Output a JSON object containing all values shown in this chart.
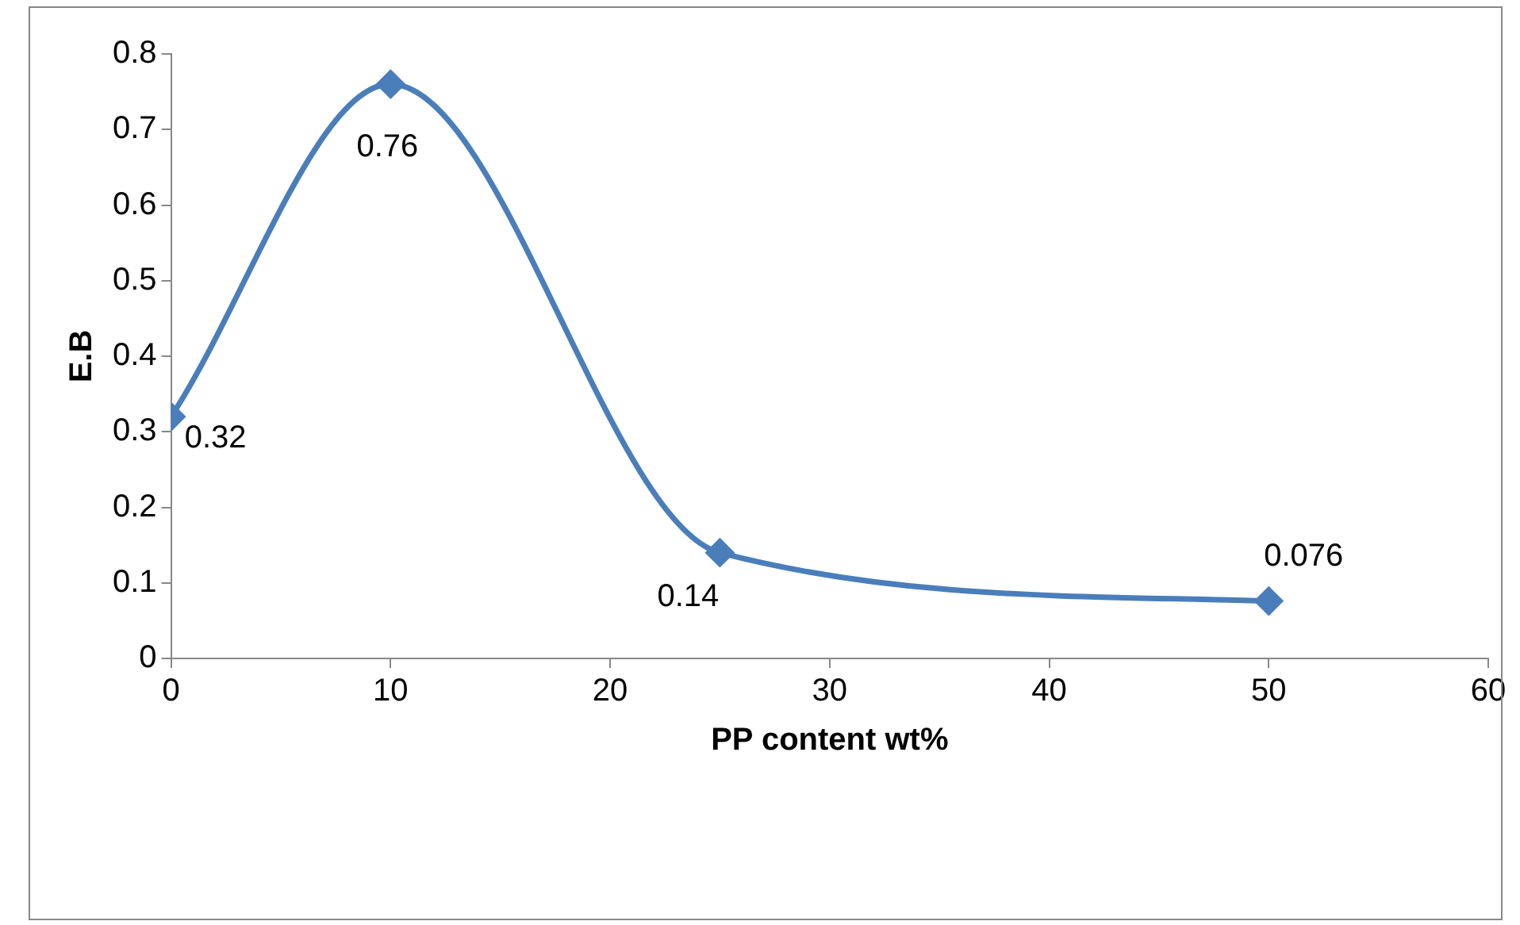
{
  "chart_data": {
    "type": "line",
    "xlabel": "PP content wt%",
    "ylabel": "E.B",
    "x": [
      0,
      10,
      25,
      50
    ],
    "series": [
      {
        "color": "#4a7ebb",
        "values": [
          0.32,
          0.76,
          0.14,
          0.076
        ]
      }
    ],
    "xlim": [
      0,
      60
    ],
    "xticks": [
      0,
      10,
      20,
      30,
      40,
      50,
      60
    ],
    "ylim": [
      0,
      0.8
    ],
    "yticks": [
      0,
      0.1,
      0.2,
      0.3,
      0.4,
      0.5,
      0.6,
      0.7,
      0.8
    ],
    "grid": false,
    "legend": false,
    "marker": "diamond",
    "line_style": "solid",
    "data_labels": true
  }
}
